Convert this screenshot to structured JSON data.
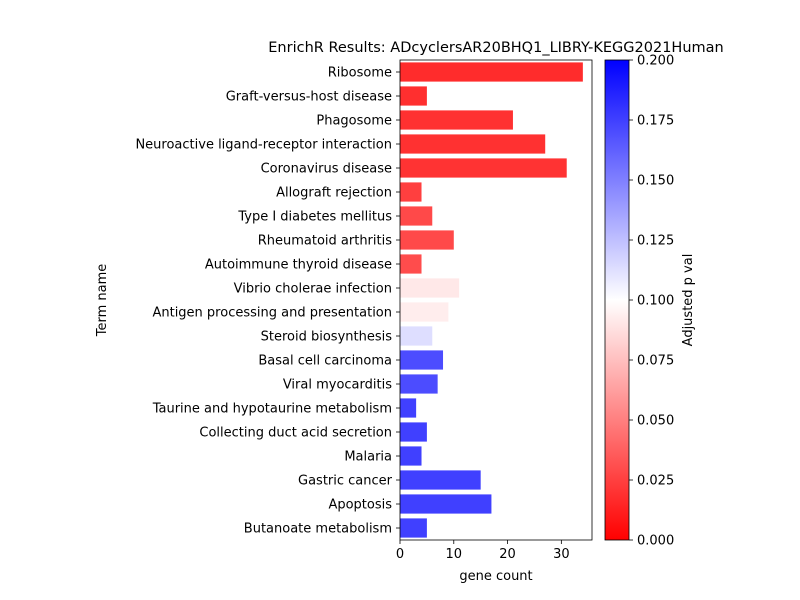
{
  "chart_data": {
    "type": "bar",
    "orientation": "horizontal",
    "title": "EnrichR Results: ADcyclersAR20BHQ1_LIBRY-KEGG2021Human",
    "xlabel": "gene count",
    "ylabel": "Term name",
    "xlim": [
      0,
      35.7
    ],
    "xticks": [
      0,
      10,
      20,
      30
    ],
    "grid": false,
    "categories": [
      "Ribosome",
      "Graft-versus-host disease",
      "Phagosome",
      "Neuroactive ligand-receptor interaction",
      "Coronavirus disease",
      "Allograft rejection",
      "Type I diabetes mellitus",
      "Rheumatoid arthritis",
      "Autoimmune thyroid disease",
      "Vibrio cholerae infection",
      "Antigen processing and presentation",
      "Steroid biosynthesis",
      "Basal cell carcinoma",
      "Viral myocarditis",
      "Taurine and hypotaurine metabolism",
      "Collecting duct acid secretion",
      "Malaria",
      "Gastric cancer",
      "Apoptosis",
      "Butanoate metabolism"
    ],
    "values": [
      34,
      5,
      21,
      27,
      31,
      4,
      6,
      10,
      4,
      11,
      9,
      6,
      8,
      7,
      3,
      5,
      4,
      15,
      17,
      5
    ],
    "adjusted_p": [
      0.006,
      0.007,
      0.008,
      0.008,
      0.009,
      0.014,
      0.019,
      0.019,
      0.02,
      0.09,
      0.092,
      0.115,
      0.18,
      0.18,
      0.185,
      0.185,
      0.185,
      0.185,
      0.185,
      0.185
    ],
    "colorbar": {
      "label": "Adjusted p val",
      "range": [
        0,
        0.2
      ],
      "ticks": [
        "0.000",
        "0.025",
        "0.050",
        "0.075",
        "0.100",
        "0.125",
        "0.150",
        "0.175",
        "0.200"
      ],
      "colors": [
        "#ff0000",
        "#ffffff",
        "#0000ff"
      ]
    }
  }
}
